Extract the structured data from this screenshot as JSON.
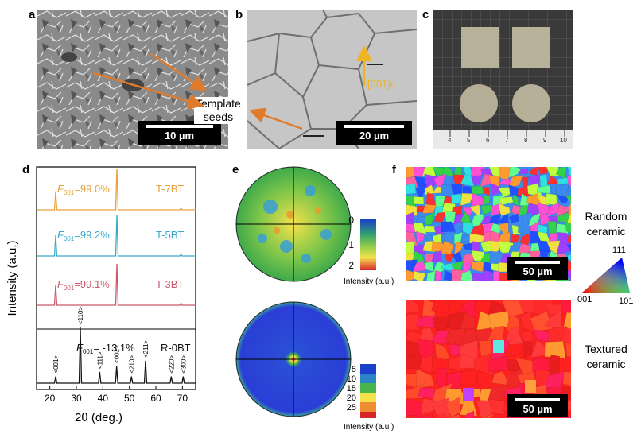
{
  "panels": {
    "a": {
      "letter": "a",
      "scale": "10 µm"
    },
    "b": {
      "letter": "b",
      "scale": "20 µm",
      "direction": "[001]c"
    },
    "c": {
      "letter": "c",
      "ruler_ticks": [
        "4",
        "5",
        "6",
        "7",
        "8",
        "9",
        "10"
      ]
    },
    "template_seeds": {
      "line1": "Template",
      "line2": "seeds"
    },
    "d": {
      "letter": "d"
    },
    "e": {
      "letter": "e",
      "scale_top": [
        "0",
        "1",
        "2"
      ],
      "scale_bottom": [
        "5",
        "10",
        "15",
        "20",
        "25"
      ],
      "intensity_label": "Intensity (a.u.)"
    },
    "f": {
      "letter": "f",
      "scale": "50 µm",
      "random_line1": "Random",
      "random_line2": "ceramic",
      "textured_line1": "Textured",
      "textured_line2": "ceramic",
      "ipf": {
        "top": "111",
        "left": "001",
        "right": "101"
      }
    }
  },
  "chart_data": {
    "type": "line",
    "xlabel": "2θ (deg.)",
    "ylabel": "Intensity (a.u.)",
    "xlim": [
      15,
      75
    ],
    "xticks": [
      "20",
      "30",
      "40",
      "50",
      "60",
      "70"
    ],
    "series": [
      {
        "name": "T-7BT",
        "color": "#e7a13a",
        "fvalue": "=99.0%",
        "peaks": [
          [
            22.2,
            0.45
          ],
          [
            45.3,
            1.0
          ],
          [
            69.5,
            0.04
          ]
        ]
      },
      {
        "name": "T-5BT",
        "color": "#3aaac9",
        "fvalue": "=99.2%",
        "peaks": [
          [
            22.2,
            0.5
          ],
          [
            45.3,
            1.0
          ],
          [
            69.5,
            0.04
          ]
        ]
      },
      {
        "name": "T-3BT",
        "color": "#c85a6a",
        "fvalue": "=99.1%",
        "peaks": [
          [
            22.2,
            0.5
          ],
          [
            45.3,
            1.0
          ],
          [
            69.5,
            0.05
          ]
        ]
      },
      {
        "name": "R-0BT",
        "color": "#111111",
        "fvalue": "= -13.1%",
        "peaks": [
          [
            22.2,
            0.12
          ],
          [
            31.5,
            1.0
          ],
          [
            38.8,
            0.2
          ],
          [
            45.2,
            0.3
          ],
          [
            50.8,
            0.12
          ],
          [
            56.1,
            0.4
          ],
          [
            65.8,
            0.12
          ],
          [
            70.3,
            0.12
          ]
        ]
      }
    ],
    "f_prefix": "F",
    "f_sub": "001",
    "peak_labels": [
      {
        "x": 22.2,
        "text": "<001>"
      },
      {
        "x": 31.5,
        "text": "<110>"
      },
      {
        "x": 38.8,
        "text": "<111>"
      },
      {
        "x": 45.2,
        "text": "<002>"
      },
      {
        "x": 50.8,
        "text": "<210>"
      },
      {
        "x": 56.1,
        "text": "<211>"
      },
      {
        "x": 65.8,
        "text": "<220>"
      },
      {
        "x": 70.3,
        "text": "<300>"
      }
    ]
  }
}
